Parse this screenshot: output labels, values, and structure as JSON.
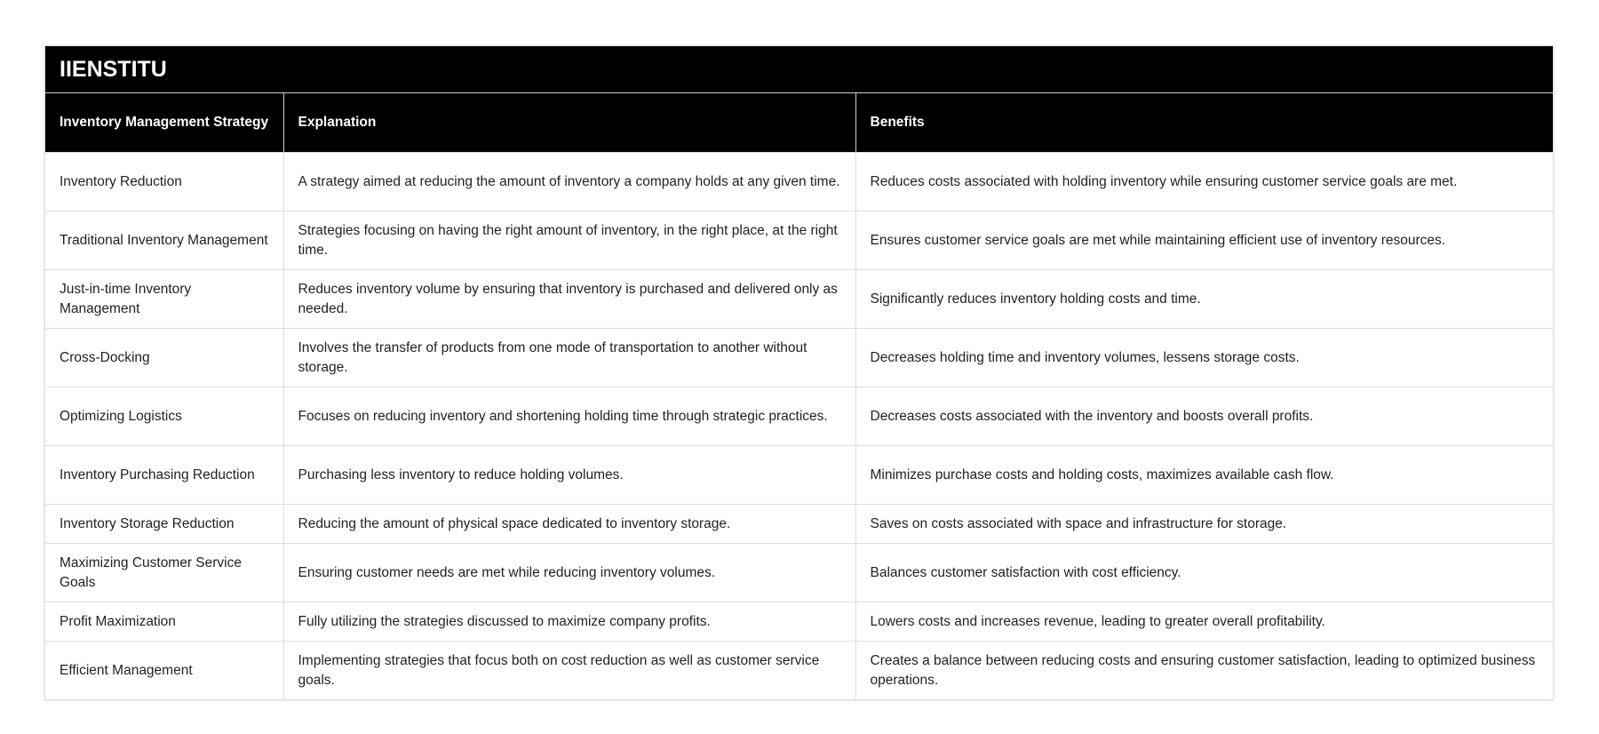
{
  "title": "IIENSTITU",
  "columns": [
    "Inventory Management Strategy",
    "Explanation",
    "Benefits"
  ],
  "rows": [
    [
      "Inventory Reduction",
      "A strategy aimed at reducing the amount of inventory a company holds at any given time.",
      "Reduces costs associated with holding inventory while ensuring customer service goals are met."
    ],
    [
      "Traditional Inventory Management",
      "Strategies focusing on having the right amount of inventory, in the right place, at the right time.",
      "Ensures customer service goals are met while maintaining efficient use of inventory resources."
    ],
    [
      "Just-in-time Inventory Management",
      "Reduces inventory volume by ensuring that inventory is purchased and delivered only as needed.",
      "Significantly reduces inventory holding costs and time."
    ],
    [
      "Cross-Docking",
      "Involves the transfer of products from one mode of transportation to another without storage.",
      "Decreases holding time and inventory volumes, lessens storage costs."
    ],
    [
      "Optimizing Logistics",
      "Focuses on reducing inventory and shortening holding time through strategic practices.",
      "Decreases costs associated with the inventory and boosts overall profits."
    ],
    [
      "Inventory Purchasing Reduction",
      "Purchasing less inventory to reduce holding volumes.",
      "Minimizes purchase costs and holding costs, maximizes available cash flow."
    ],
    [
      "Inventory Storage Reduction",
      "Reducing the amount of physical space dedicated to inventory storage.",
      "Saves on costs associated with space and infrastructure for storage."
    ],
    [
      "Maximizing Customer Service Goals",
      "Ensuring customer needs are met while reducing inventory volumes.",
      "Balances customer satisfaction with cost efficiency."
    ],
    [
      "Profit Maximization",
      "Fully utilizing the strategies discussed to maximize company profits.",
      "Lowers costs and increases revenue, leading to greater overall profitability."
    ],
    [
      "Efficient Management",
      "Implementing strategies that focus both on cost reduction as well as customer service goals.",
      "Creates a balance between reducing costs and ensuring customer satisfaction, leading to optimized business operations."
    ]
  ]
}
